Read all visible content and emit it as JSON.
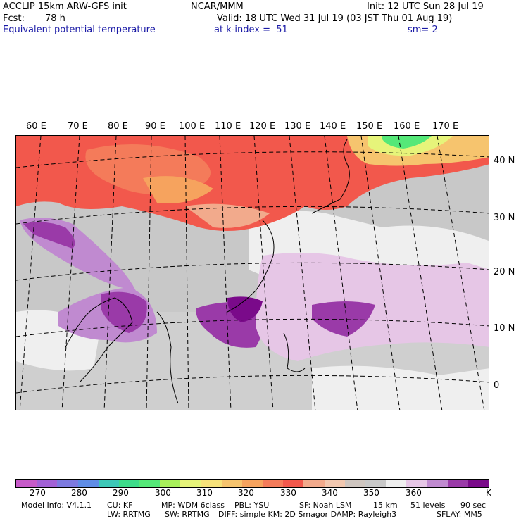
{
  "header": {
    "model": "ACCLIP 15km ARW-GFS init",
    "org": "NCAR/MMM",
    "init": "Init: 12 UTC Sun 28 Jul 19",
    "forecast_label": "Fcst:",
    "forecast_value": "78 h",
    "valid": "Valid: 18 UTC Wed 31 Jul 19 (03 JST Thu 01 Aug 19)",
    "field": "Equivalent potential temperature",
    "level": "at k-index =  51",
    "smoothing": "sm= 2"
  },
  "map": {
    "longitude_labels": [
      "60 E",
      "70 E",
      "80 E",
      "90 E",
      "100 E",
      "110 E",
      "120 E",
      "130 E",
      "140 E",
      "150 E",
      "160 E",
      "170 E"
    ],
    "latitude_labels": [
      "40 N",
      "30 N",
      "20 N",
      "10 N",
      "0"
    ]
  },
  "colorbar": {
    "colors": [
      "#c75ac9",
      "#a261d6",
      "#7d7ae0",
      "#5f8de6",
      "#3dc8b7",
      "#3ddc8a",
      "#55e878",
      "#a8f05a",
      "#e6f47a",
      "#f6e27a",
      "#f6c46e",
      "#f6a35e",
      "#f47b5a",
      "#f2584c",
      "#f2aa8c",
      "#f2c8b0",
      "#cfc6c0",
      "#c8c8c8",
      "#efefef",
      "#e6c6e6",
      "#c08ad0",
      "#9a3aa8",
      "#7a0a8a"
    ],
    "labels": [
      "270",
      "280",
      "290",
      "300",
      "310",
      "320",
      "330",
      "340",
      "350",
      "360"
    ],
    "unit": "K"
  },
  "model_info": {
    "line1": [
      "Model Info: V4.1.1",
      "CU: KF",
      "MP: WDM 6class",
      "PBL: YSU",
      "SF: Noah LSM",
      "15 km",
      "51 levels",
      "90 sec"
    ],
    "line2": [
      "LW: RRTMG",
      "SW: RRTMG",
      "DIFF: simple KM: 2D Smagor DAMP: Rayleigh3",
      "SFLAY: MM5"
    ]
  }
}
